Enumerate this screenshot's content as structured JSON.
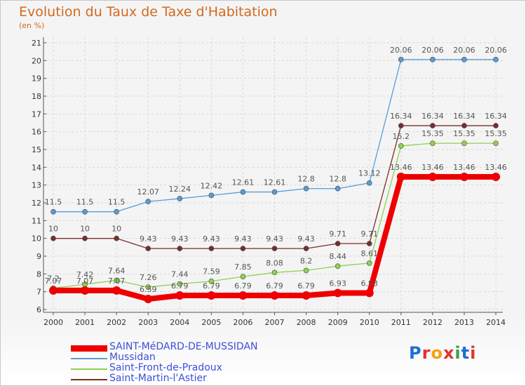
{
  "title": "Evolution du Taux de Taxe d'Habitation",
  "subtitle": "(en %)",
  "logo": "Proxiti",
  "colors": {
    "title": "#d2691e",
    "legend_text": "#3b4fd8",
    "grid": "#d8d8d8",
    "axis": "#555555"
  },
  "chart_data": {
    "type": "line",
    "x": [
      "2000",
      "2001",
      "2002",
      "2003",
      "2004",
      "2005",
      "2006",
      "2007",
      "2008",
      "2009",
      "2010",
      "2011",
      "2012",
      "2013",
      "2014"
    ],
    "ylim": [
      6,
      21
    ],
    "yticks": [
      6,
      7,
      8,
      9,
      10,
      11,
      12,
      13,
      14,
      15,
      16,
      17,
      18,
      19,
      20,
      21
    ],
    "grid": true,
    "legend_position": "bottom-left",
    "series": [
      {
        "name": "Mussidan",
        "color": "#5b9bd5",
        "width": 1.3,
        "marker": true,
        "values": [
          11.5,
          11.5,
          11.5,
          12.07,
          12.24,
          12.42,
          12.61,
          12.61,
          12.8,
          12.8,
          13.12,
          20.06,
          20.06,
          20.06,
          20.06
        ],
        "labels": [
          "11.5",
          "11.5",
          "11.5",
          "12.07",
          "12.24",
          "12.42",
          "12.61",
          "12.61",
          "12.8",
          "12.8",
          "13.12",
          "20.06",
          "20.06",
          "20.06",
          "20.06"
        ]
      },
      {
        "name": "Saint-Martin-l'Astier",
        "color": "#7b2c2c",
        "width": 1.3,
        "marker": true,
        "values": [
          10,
          10,
          10,
          9.43,
          9.43,
          9.43,
          9.43,
          9.43,
          9.43,
          9.71,
          9.71,
          16.34,
          16.34,
          16.34,
          16.34
        ],
        "labels": [
          "10",
          "10",
          "10",
          "9.43",
          "9.43",
          "9.43",
          "9.43",
          "9.43",
          "9.43",
          "9.71",
          "9.71",
          "16.34",
          "16.34",
          "16.34",
          "16.34"
        ]
      },
      {
        "name": "Saint-Front-de-Pradoux",
        "color": "#8fd14f",
        "width": 1.3,
        "marker": true,
        "values": [
          7.2,
          7.42,
          7.64,
          7.26,
          7.44,
          7.59,
          7.85,
          8.08,
          8.2,
          8.44,
          8.61,
          15.2,
          15.35,
          15.35,
          15.35
        ],
        "labels": [
          "7.2",
          "7.42",
          "7.64",
          "7.26",
          "7.44",
          "7.59",
          "7.85",
          "8.08",
          "8.2",
          "8.44",
          "8.61",
          "15.2",
          "15.35",
          "15.35",
          "15.35"
        ]
      },
      {
        "name": "SAINT-MéDARD-DE-MUSSIDAN",
        "color": "#ee0000",
        "width": 8,
        "marker": true,
        "values": [
          7.07,
          7.07,
          7.07,
          6.59,
          6.79,
          6.79,
          6.79,
          6.79,
          6.79,
          6.93,
          6.93,
          13.46,
          13.46,
          13.46,
          13.46
        ],
        "labels": [
          "7.07",
          "7.07",
          "7.07",
          "6.59",
          "6.79",
          "6.79",
          "6.79",
          "6.79",
          "6.79",
          "6.93",
          "6.93",
          "13.46",
          "13.46",
          "13.46",
          "13.46"
        ]
      }
    ],
    "legend_order": [
      "SAINT-MéDARD-DE-MUSSIDAN",
      "Mussidan",
      "Saint-Front-de-Pradoux",
      "Saint-Martin-l'Astier"
    ]
  }
}
